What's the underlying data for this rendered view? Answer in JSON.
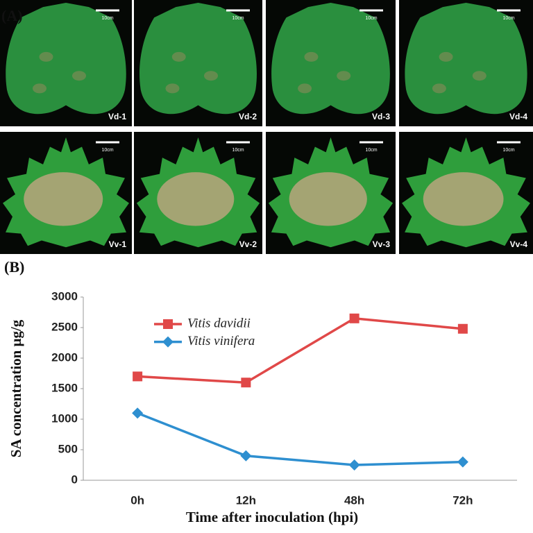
{
  "panel_a": {
    "label": "(A)",
    "photos": [
      {
        "label": "Vd-1",
        "scale": "10cm"
      },
      {
        "label": "Vd-2",
        "scale": "10cm"
      },
      {
        "label": "Vd-3",
        "scale": "10cm"
      },
      {
        "label": "Vd-4",
        "scale": "10cm"
      },
      {
        "label": "Vv-1",
        "scale": "10cm"
      },
      {
        "label": "Vv-2",
        "scale": "10cm"
      },
      {
        "label": "Vv-3",
        "scale": "10cm"
      },
      {
        "label": "Vv-4",
        "scale": "10cm"
      }
    ]
  },
  "panel_b": {
    "label": "(B)"
  },
  "chart_data": {
    "type": "line",
    "x_label": "Time after inoculation (hpi)",
    "y_label": "SA concentration μg/g",
    "categories": [
      "0h",
      "12h",
      "48h",
      "72h"
    ],
    "series": [
      {
        "name": "Vitis davidii",
        "color": "#e04848",
        "marker": "square",
        "values": [
          1700,
          1600,
          2650,
          2480
        ]
      },
      {
        "name": "Vitis vinifera",
        "color": "#2e8fd0",
        "marker": "diamond",
        "values": [
          1100,
          400,
          250,
          300
        ]
      }
    ],
    "ylim": [
      0,
      3000
    ],
    "yticks": [
      0,
      500,
      1000,
      1500,
      2000,
      2500,
      3000
    ],
    "grid": false
  }
}
